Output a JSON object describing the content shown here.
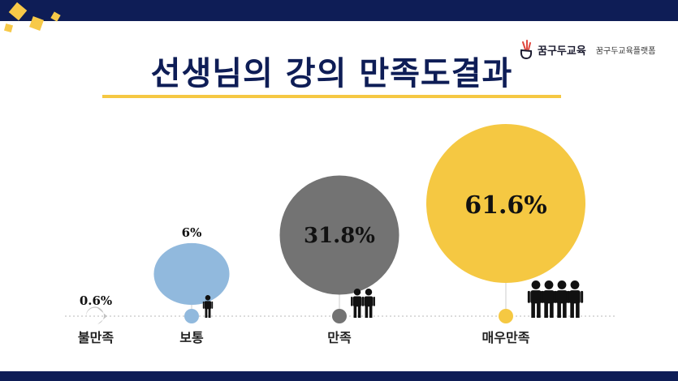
{
  "title": "선생님의 강의 만족도결과",
  "logo": {
    "brand": "꿈구두교육",
    "subtitle": "꿈구두교육플랫폼"
  },
  "colors": {
    "navy": "#0e1d56",
    "yellow": "#f5c842",
    "gray_light": "#c2c2c2",
    "blue": "#91b9dd",
    "gray_dark": "#737373",
    "icon": "#111111",
    "baseline": "#d0d0d0"
  },
  "chart_data": {
    "type": "bubble",
    "title": "선생님의 강의 만족도결과",
    "unit": "%",
    "categories": [
      "불만족",
      "보통",
      "만족",
      "매우만족"
    ],
    "values": [
      0.6,
      6,
      31.8,
      61.6
    ],
    "labels": [
      "0.6%",
      "6%",
      "31.8%",
      "61.6%"
    ],
    "people_icons": [
      0,
      1,
      2,
      4
    ],
    "bubble_colors": [
      "#c2c2c2",
      "#91b9dd",
      "#737373",
      "#f5c842"
    ]
  }
}
